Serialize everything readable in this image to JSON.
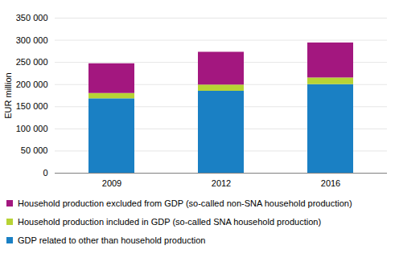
{
  "chart_data": {
    "type": "bar",
    "stacked": true,
    "y_label": "EUR million",
    "categories": [
      "2009",
      "2012",
      "2016"
    ],
    "series": [
      {
        "name": "GDP related to other than household production",
        "color": "#1a80c4",
        "values": [
          168000,
          185000,
          200000
        ]
      },
      {
        "name": "Household production included in GDP (so-called SNA household production)",
        "color": "#b7d335",
        "values": [
          12000,
          14000,
          15000
        ]
      },
      {
        "name": "Household production excluded from GDP (so-called non-SNA household production)",
        "color": "#a3177f",
        "values": [
          67000,
          74000,
          79000
        ]
      }
    ],
    "ylim": [
      0,
      350000
    ],
    "yticks": [
      {
        "value": 0,
        "label": "0"
      },
      {
        "value": 50000,
        "label": "50 000"
      },
      {
        "value": 100000,
        "label": "100 000"
      },
      {
        "value": 150000,
        "label": "150 000"
      },
      {
        "value": 200000,
        "label": "200 000"
      },
      {
        "value": 250000,
        "label": "250 000"
      },
      {
        "value": 300000,
        "label": "300 000"
      },
      {
        "value": 350000,
        "label": "350 000"
      }
    ],
    "grid": true,
    "legend": "bottom"
  }
}
